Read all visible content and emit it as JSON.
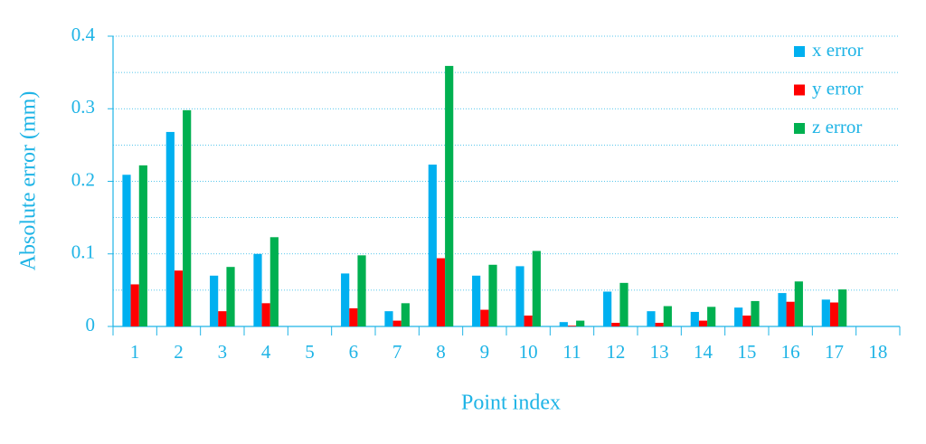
{
  "chart_data": {
    "type": "bar",
    "x_label": "Point index",
    "y_label": "Absolute  error (mm)",
    "categories": [
      "1",
      "2",
      "3",
      "4",
      "5",
      "6",
      "7",
      "8",
      "9",
      "10",
      "11",
      "12",
      "13",
      "14",
      "15",
      "16",
      "17",
      "18"
    ],
    "series": [
      {
        "name": "x error",
        "color": "#00b0f0",
        "values": [
          0.209,
          0.268,
          0.07,
          0.1,
          0,
          0.073,
          0.021,
          0.223,
          0.07,
          0.083,
          0.006,
          0.048,
          0.021,
          0.02,
          0.026,
          0.046,
          0.037,
          0
        ]
      },
      {
        "name": "y error",
        "color": "#ff0000",
        "values": [
          0.058,
          0.077,
          0.021,
          0.032,
          0,
          0.025,
          0.008,
          0.094,
          0.023,
          0.015,
          0.001,
          0.005,
          0.005,
          0.008,
          0.015,
          0.034,
          0.033,
          0
        ]
      },
      {
        "name": "z error",
        "color": "#00b050",
        "values": [
          0.222,
          0.298,
          0.082,
          0.123,
          0,
          0.098,
          0.032,
          0.359,
          0.085,
          0.104,
          0.008,
          0.06,
          0.028,
          0.027,
          0.035,
          0.062,
          0.051,
          0
        ]
      }
    ],
    "ylim": [
      0,
      0.4
    ],
    "yticks": [
      0,
      0.1,
      0.2,
      0.3,
      0.4
    ],
    "minor_yticks": [
      0.05,
      0.15,
      0.25,
      0.35
    ],
    "grid": true,
    "legend": "upper right"
  }
}
